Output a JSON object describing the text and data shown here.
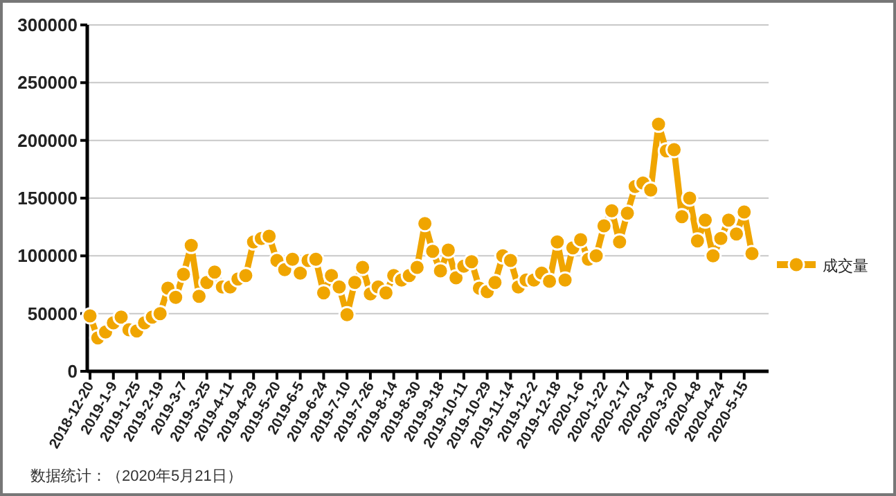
{
  "chart_data": {
    "type": "line",
    "legend": "right",
    "grid": "y",
    "marker": "circle",
    "line_style": "solid",
    "annotations": [
      "数据统计：（2020年5月21日）"
    ],
    "categories": [
      "2018-12-20",
      null,
      null,
      "2019-1-9",
      null,
      null,
      "2019-1-25",
      null,
      null,
      "2019-2-19",
      null,
      null,
      "2019-3-7",
      null,
      null,
      "2019-3-25",
      null,
      null,
      "2019-4-11",
      null,
      null,
      "2019-4-29",
      null,
      null,
      "2019-5-20",
      null,
      null,
      "2019-6-5",
      null,
      null,
      "2019-6-24",
      null,
      null,
      "2019-7-10",
      null,
      null,
      "2019-7-26",
      null,
      null,
      "2019-8-14",
      null,
      null,
      "2019-8-30",
      null,
      null,
      "2019-9-18",
      null,
      null,
      "2019-10-11",
      null,
      null,
      "2019-10-29",
      null,
      null,
      "2019-11-14",
      null,
      null,
      "2019-12-2",
      null,
      null,
      "2019-12-18",
      null,
      null,
      "2020-1-6",
      null,
      null,
      "2020-1-22",
      null,
      null,
      "2020-2-17",
      null,
      null,
      "2020-3-4",
      null,
      null,
      "2020-3-20",
      null,
      null,
      "2020-4-8",
      null,
      null,
      "2020-4-24",
      null,
      null,
      "2020-5-15",
      null
    ],
    "ylim": [
      0,
      300000
    ],
    "yticks": [
      0,
      50000,
      100000,
      150000,
      200000,
      250000,
      300000
    ],
    "series": [
      {
        "name": "成交量",
        "color": "#f0a500",
        "values": [
          48000,
          29000,
          34000,
          42000,
          47000,
          36000,
          35000,
          42000,
          47000,
          50000,
          72000,
          64000,
          84000,
          109000,
          65000,
          77000,
          86000,
          73000,
          73000,
          80000,
          83000,
          112000,
          115000,
          117000,
          96000,
          88000,
          97000,
          85000,
          96000,
          97000,
          68000,
          83000,
          73000,
          49000,
          77000,
          90000,
          67000,
          73000,
          68000,
          83000,
          79000,
          83000,
          90000,
          128000,
          104000,
          87000,
          105000,
          81000,
          91000,
          95000,
          72000,
          69000,
          77000,
          100000,
          96000,
          73000,
          79000,
          79000,
          85000,
          78000,
          112000,
          79000,
          107000,
          114000,
          97000,
          100000,
          126000,
          139000,
          112000,
          137000,
          160000,
          163000,
          157000,
          214000,
          191000,
          192000,
          134000,
          150000,
          113000,
          131000,
          100000,
          115000,
          131000,
          119000,
          138000,
          102000
        ]
      }
    ]
  }
}
